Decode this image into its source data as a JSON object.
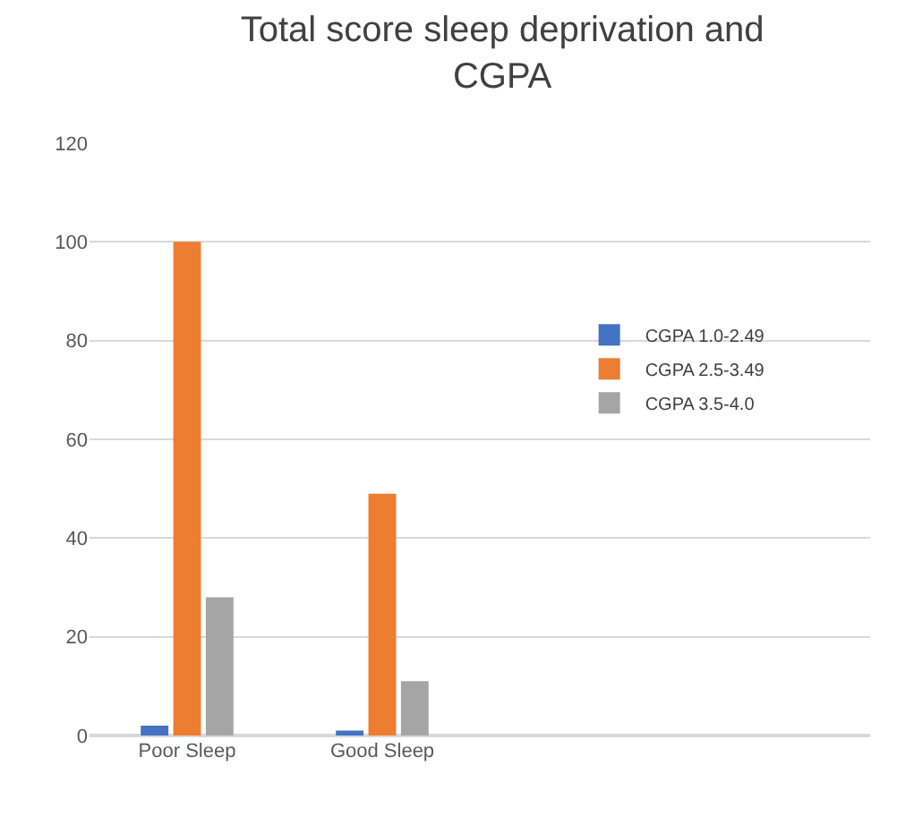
{
  "chart_data": {
    "type": "bar",
    "title": "Total score sleep deprivation and\nCGPA",
    "categories": [
      "Poor Sleep",
      "Good Sleep"
    ],
    "series": [
      {
        "name": "CGPA 1.0-2.49",
        "color": "#4472c4",
        "values": [
          2,
          1
        ]
      },
      {
        "name": "CGPA 2.5-3.49",
        "color": "#ed7d31",
        "values": [
          100,
          49
        ]
      },
      {
        "name": "CGPA 3.5-4.0",
        "color": "#a5a5a5",
        "values": [
          28,
          11
        ]
      }
    ],
    "ylim": [
      0,
      120
    ],
    "yticks": [
      0,
      20,
      40,
      60,
      80,
      100,
      120
    ],
    "grid": "y",
    "legend": "right"
  }
}
